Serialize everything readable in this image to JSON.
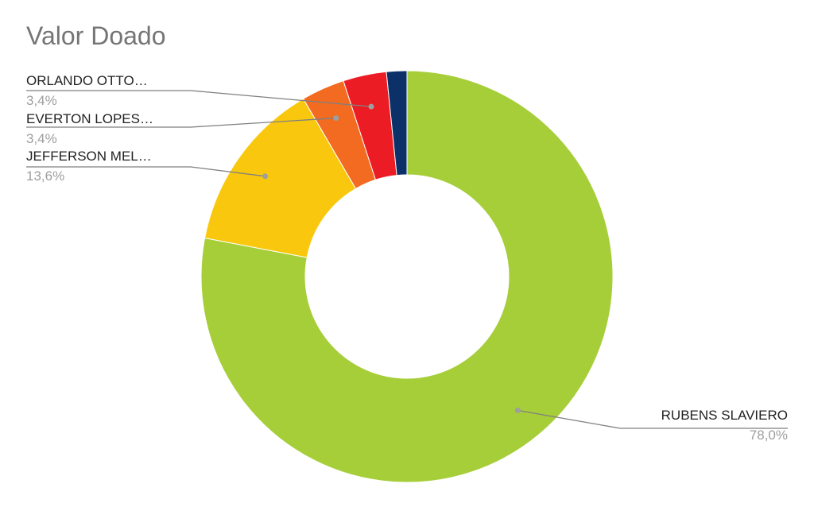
{
  "chart_data": {
    "type": "pie",
    "donut": true,
    "title": "Valor Doado",
    "slices": [
      {
        "label": "RUBENS SLAVIERO",
        "value": 78.0,
        "value_label": "78,0%",
        "color": "#a6ce39"
      },
      {
        "label": "JEFFERSON MEL…",
        "value": 13.6,
        "value_label": "13,6%",
        "color": "#f9c80e"
      },
      {
        "label": "EVERTON LOPES…",
        "value": 3.4,
        "value_label": "3,4%",
        "color": "#f26b21"
      },
      {
        "label": "ORLANDO OTTO…",
        "value": 3.4,
        "value_label": "3,4%",
        "color": "#ec1c24"
      },
      {
        "label": "",
        "value": 1.6,
        "value_label": "",
        "color": "#0b3168"
      }
    ],
    "legend": "none",
    "label_placement": "outside with leader lines"
  }
}
